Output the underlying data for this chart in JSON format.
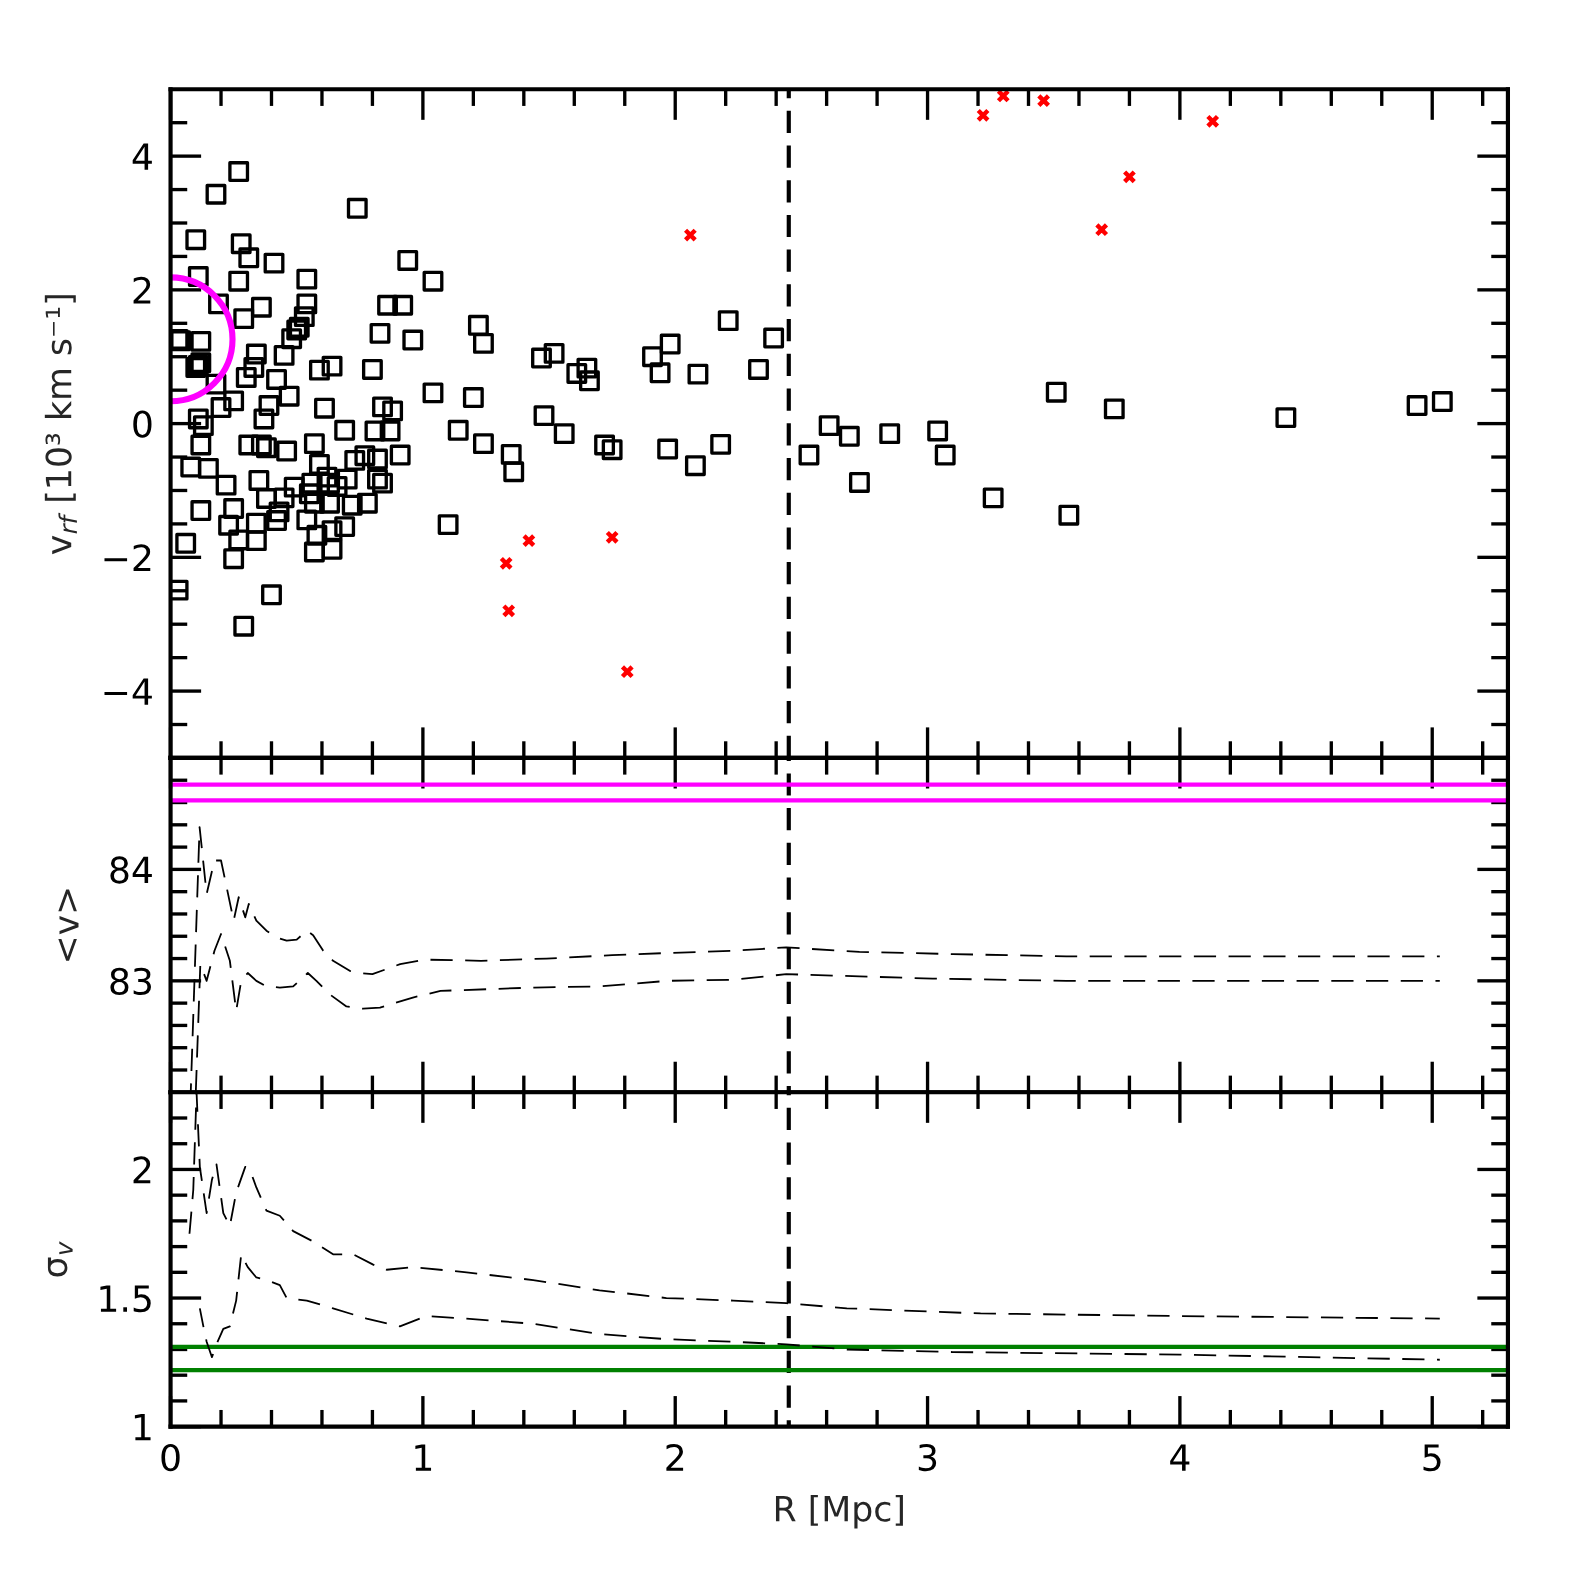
{
  "chart_data": [
    {
      "type": "scatter",
      "ylabel": "v$_{rf}$ [10³ km s⁻¹]",
      "xlim": [
        0,
        5.3
      ],
      "ylim": [
        -5,
        5
      ],
      "tick_labels": "y",
      "xticks": [
        0,
        {
          "value": 0.2,
          "label": null
        },
        {
          "value": 0.4,
          "label": null
        },
        {
          "value": 0.6,
          "label": null
        },
        {
          "value": 0.8,
          "label": null
        },
        1,
        {
          "value": 1.2,
          "label": null
        },
        {
          "value": 1.4,
          "label": null
        },
        {
          "value": 1.6,
          "label": null
        },
        {
          "value": 1.8,
          "label": null
        },
        2,
        {
          "value": 2.2,
          "label": null
        },
        {
          "value": 2.4,
          "label": null
        },
        {
          "value": 2.6,
          "label": null
        },
        {
          "value": 2.8,
          "label": null
        },
        3,
        {
          "value": 3.2,
          "label": null
        },
        {
          "value": 3.4,
          "label": null
        },
        {
          "value": 3.6,
          "label": null
        },
        {
          "value": 3.8,
          "label": null
        },
        4,
        {
          "value": 4.2,
          "label": null
        },
        {
          "value": 4.4,
          "label": null
        },
        {
          "value": 4.6,
          "label": null
        },
        {
          "value": 4.8,
          "label": null
        },
        5,
        {
          "value": 5.2,
          "label": null
        }
      ],
      "yticks": [
        {
          "value": -4.5,
          "label": null
        },
        {
          "value": -4,
          "label": "−4"
        },
        {
          "value": -3.5,
          "label": null
        },
        {
          "value": -3,
          "label": null
        },
        {
          "value": -2.5,
          "label": null
        },
        {
          "value": -2,
          "label": "−2"
        },
        {
          "value": -1.5,
          "label": null
        },
        {
          "value": -1,
          "label": null
        },
        {
          "value": -0.5,
          "label": null
        },
        0,
        {
          "value": 0.5,
          "label": null
        },
        {
          "value": 1,
          "label": null
        },
        {
          "value": 1.5,
          "label": null
        },
        2,
        {
          "value": 2.5,
          "label": null
        },
        {
          "value": 3,
          "label": null
        },
        {
          "value": 3.5,
          "label": null
        },
        4,
        {
          "value": 4.5,
          "label": null
        }
      ],
      "series": [
        {
          "color": "#000000",
          "marker": "square",
          "x": [
            0.27,
            0.18,
            0.74,
            0.1,
            0.28,
            0.31,
            0.41,
            0.94,
            0.11,
            0.27,
            0.54,
            1.04,
            0.19,
            0.36,
            0.86,
            0.92,
            0.54,
            0.29,
            0.53,
            0.51,
            0.83,
            0.96,
            1.22,
            1.24,
            0.03,
            0.12,
            0.48,
            0.5,
            0.34,
            0.45,
            0.11,
            0.12,
            0.33,
            0.59,
            0.64,
            0.8,
            0.3,
            0.42,
            0.18,
            0.47,
            1.04,
            1.2,
            0.25,
            0.2,
            0.39,
            0.61,
            0.84,
            0.88,
            0.11,
            0.37,
            0.13,
            0.69,
            0.81,
            0.87,
            1.14,
            1.24,
            0.12,
            0.31,
            0.36,
            0.38,
            0.46,
            0.57,
            0.77,
            0.73,
            0.91,
            0.08,
            0.15,
            0.59,
            0.22,
            0.35,
            0.49,
            0.56,
            0.62,
            0.7,
            0.82,
            0.84,
            0.63,
            1.35,
            1.36,
            0.38,
            0.45,
            0.55,
            0.66,
            0.12,
            0.25,
            0.43,
            0.57,
            0.63,
            0.72,
            0.78,
            0.54,
            0.42,
            0.34,
            0.23,
            0.69,
            0.58,
            0.64,
            0.27,
            0.34,
            0.06,
            0.57,
            0.64,
            0.25,
            1.1,
            0.03,
            0.4,
            0.29,
            0.1,
            0.82,
            0.04,
            1.47,
            1.52,
            1.61,
            1.65,
            1.66,
            1.91,
            1.98,
            1.94,
            2.09,
            2.21,
            2.33,
            2.39,
            1.48,
            1.56,
            1.72,
            1.75,
            1.97,
            2.08,
            2.18,
            2.53,
            2.61,
            2.69,
            2.85,
            3.04,
            3.07,
            2.73,
            3.26,
            3.51,
            3.74,
            3.56,
            4.42,
            4.94,
            5.04
          ],
          "values": [
            3.77,
            3.43,
            3.22,
            2.75,
            2.69,
            2.48,
            2.4,
            2.44,
            2.2,
            2.13,
            2.16,
            2.13,
            1.79,
            1.74,
            1.77,
            1.77,
            1.79,
            1.57,
            1.6,
            1.44,
            1.35,
            1.25,
            1.47,
            1.2,
            1.26,
            1.23,
            1.27,
            1.4,
            1.04,
            1.02,
            0.87,
            0.91,
            0.84,
            0.8,
            0.86,
            0.81,
            0.69,
            0.66,
            0.59,
            0.41,
            0.46,
            0.39,
            0.34,
            0.24,
            0.27,
            0.23,
            0.25,
            0.19,
            0.07,
            0.07,
            -0.03,
            -0.1,
            -0.11,
            -0.11,
            -0.1,
            -0.3,
            -0.32,
            -0.32,
            -0.32,
            -0.36,
            -0.41,
            -0.3,
            -0.48,
            -0.55,
            -0.47,
            -0.65,
            -0.67,
            -0.61,
            -0.92,
            -0.85,
            -0.95,
            -0.89,
            -0.8,
            -0.83,
            -0.83,
            -0.89,
            -0.89,
            -0.46,
            -0.72,
            -1.12,
            -1.11,
            -1.05,
            -0.94,
            -1.3,
            -1.27,
            -1.32,
            -1.19,
            -1.19,
            -1.22,
            -1.19,
            -1.44,
            -1.45,
            -1.49,
            -1.52,
            -1.54,
            -1.67,
            -1.6,
            -1.74,
            -1.75,
            -1.79,
            -1.92,
            -1.88,
            -2.02,
            -1.51,
            -2.49,
            -2.56,
            -3.03,
            0.84,
            -0.53,
            1.24,
            0.98,
            1.05,
            0.75,
            0.83,
            0.64,
            1.0,
            1.19,
            0.76,
            0.74,
            1.54,
            0.81,
            1.28,
            0.12,
            -0.15,
            -0.32,
            -0.39,
            -0.38,
            -0.63,
            -0.31,
            -0.47,
            -0.03,
            -0.19,
            -0.15,
            -0.11,
            -0.47,
            -0.88,
            -1.11,
            0.47,
            0.22,
            -1.37,
            0.09,
            0.27,
            0.33
          ]
        },
        {
          "color": "#ff0000",
          "marker": "cross",
          "x": [
            1.33,
            1.34,
            1.42,
            1.75,
            1.81,
            2.06,
            3.22,
            3.3,
            3.46,
            3.69,
            3.8,
            4.13
          ],
          "values": [
            -2.09,
            -2.8,
            -1.75,
            -1.7,
            -3.71,
            2.82,
            4.61,
            4.9,
            4.83,
            2.9,
            3.69,
            4.52
          ]
        },
        {
          "type": "bubble",
          "color": "#ff00ff",
          "marker": "circle",
          "x": [
            0
          ],
          "values": [
            1.26
          ],
          "sizes": [
            1
          ]
        }
      ],
      "ref_lines": [
        {
          "axis": "x",
          "value": 2.45,
          "color": "#000000",
          "line_style": "dashed"
        }
      ]
    },
    {
      "type": "line",
      "ylabel": "<v>",
      "xlim": [
        0,
        5.3
      ],
      "ylim": [
        82,
        85
      ],
      "tick_labels": "y",
      "xticks": [
        0,
        {
          "value": 0.2,
          "label": null
        },
        {
          "value": 0.4,
          "label": null
        },
        {
          "value": 0.6,
          "label": null
        },
        {
          "value": 0.8,
          "label": null
        },
        1,
        {
          "value": 1.2,
          "label": null
        },
        {
          "value": 1.4,
          "label": null
        },
        {
          "value": 1.6,
          "label": null
        },
        {
          "value": 1.8,
          "label": null
        },
        2,
        {
          "value": 2.2,
          "label": null
        },
        {
          "value": 2.4,
          "label": null
        },
        {
          "value": 2.6,
          "label": null
        },
        {
          "value": 2.8,
          "label": null
        },
        3,
        {
          "value": 3.2,
          "label": null
        },
        {
          "value": 3.4,
          "label": null
        },
        {
          "value": 3.6,
          "label": null
        },
        {
          "value": 3.8,
          "label": null
        },
        4,
        {
          "value": 4.2,
          "label": null
        },
        {
          "value": 4.4,
          "label": null
        },
        {
          "value": 4.6,
          "label": null
        },
        {
          "value": 4.8,
          "label": null
        },
        5,
        {
          "value": 5.2,
          "label": null
        }
      ],
      "yticks": [
        {
          "value": 82.2,
          "label": null
        },
        {
          "value": 82.4,
          "label": null
        },
        {
          "value": 82.6,
          "label": null
        },
        {
          "value": 82.8,
          "label": null
        },
        83,
        {
          "value": 83.2,
          "label": null
        },
        {
          "value": 83.4,
          "label": null
        },
        {
          "value": 83.6,
          "label": null
        },
        {
          "value": 83.8,
          "label": null
        },
        84,
        {
          "value": 84.2,
          "label": null
        },
        {
          "value": 84.4,
          "label": null
        },
        {
          "value": 84.6,
          "label": null
        },
        {
          "value": 84.8,
          "label": null
        }
      ],
      "series": [
        {
          "color": "#000000",
          "line_style": "dashed",
          "x": [
            0.08,
            0.115,
            0.143,
            0.174,
            0.2,
            0.25,
            0.27,
            0.296,
            0.31,
            0.34,
            0.38,
            0.42,
            0.46,
            0.5,
            0.54,
            0.565,
            0.605,
            0.644,
            0.71,
            0.75,
            0.8,
            0.91,
            1.01,
            1.23,
            1.49,
            1.75,
            1.97,
            2.23,
            2.44,
            2.73,
            3.1,
            3.55,
            4.2,
            5.03
          ],
          "values": [
            82.0,
            84.38,
            83.78,
            84.08,
            84.08,
            83.54,
            83.75,
            83.57,
            83.69,
            83.54,
            83.45,
            83.39,
            83.36,
            83.37,
            83.45,
            83.41,
            83.27,
            83.18,
            83.09,
            83.07,
            83.06,
            83.15,
            83.19,
            83.18,
            83.2,
            83.23,
            83.25,
            83.27,
            83.3,
            83.26,
            83.24,
            83.22,
            83.22,
            83.22
          ]
        },
        {
          "color": "#000000",
          "line_style": "dashed",
          "x": [
            0.1,
            0.118,
            0.143,
            0.174,
            0.2,
            0.235,
            0.26,
            0.28,
            0.306,
            0.34,
            0.38,
            0.433,
            0.486,
            0.544,
            0.578,
            0.63,
            0.697,
            0.763,
            0.83,
            0.96,
            1.07,
            1.44,
            1.7,
            1.97,
            2.23,
            2.44,
            2.73,
            3.02,
            3.55,
            5.03
          ],
          "values": [
            82.0,
            83.15,
            83.0,
            83.27,
            83.42,
            83.18,
            82.73,
            83.0,
            83.07,
            83.0,
            82.95,
            82.94,
            82.95,
            83.07,
            83.0,
            82.88,
            82.77,
            82.75,
            82.76,
            82.85,
            82.91,
            82.94,
            82.95,
            83.0,
            83.01,
            83.06,
            83.04,
            83.02,
            83.0,
            83.0
          ]
        }
      ],
      "ref_lines": [
        {
          "axis": "x",
          "value": 2.45,
          "color": "#000000",
          "line_style": "dashed"
        },
        {
          "axis": "y",
          "value": 84.76,
          "color": "#ff00ff"
        },
        {
          "axis": "y",
          "value": 84.62,
          "color": "#ff00ff"
        }
      ]
    },
    {
      "type": "line",
      "xlabel": "R [Mpc]",
      "ylabel": "σ$_{v}$",
      "xlim": [
        0,
        5.3
      ],
      "ylim": [
        1,
        2.3
      ],
      "xticks": [
        0,
        {
          "value": 0.2,
          "label": null
        },
        {
          "value": 0.4,
          "label": null
        },
        {
          "value": 0.6,
          "label": null
        },
        {
          "value": 0.8,
          "label": null
        },
        1,
        {
          "value": 1.2,
          "label": null
        },
        {
          "value": 1.4,
          "label": null
        },
        {
          "value": 1.6,
          "label": null
        },
        {
          "value": 1.8,
          "label": null
        },
        2,
        {
          "value": 2.2,
          "label": null
        },
        {
          "value": 2.4,
          "label": null
        },
        {
          "value": 2.6,
          "label": null
        },
        {
          "value": 2.8,
          "label": null
        },
        3,
        {
          "value": 3.2,
          "label": null
        },
        {
          "value": 3.4,
          "label": null
        },
        {
          "value": 3.6,
          "label": null
        },
        {
          "value": 3.8,
          "label": null
        },
        4,
        {
          "value": 4.2,
          "label": null
        },
        {
          "value": 4.4,
          "label": null
        },
        {
          "value": 4.6,
          "label": null
        },
        {
          "value": 4.8,
          "label": null
        },
        5,
        {
          "value": 5.2,
          "label": null
        }
      ],
      "yticks": [
        1,
        {
          "value": 1.1,
          "label": null
        },
        {
          "value": 1.2,
          "label": null
        },
        {
          "value": 1.3,
          "label": null
        },
        {
          "value": 1.4,
          "label": null
        },
        1.5,
        {
          "value": 1.6,
          "label": null
        },
        {
          "value": 1.7,
          "label": null
        },
        {
          "value": 1.8,
          "label": null
        },
        {
          "value": 1.9,
          "label": null
        },
        2,
        {
          "value": 2.1,
          "label": null
        },
        {
          "value": 2.2,
          "label": null
        }
      ],
      "series": [
        {
          "color": "#000000",
          "line_style": "dashed",
          "x": [
            0.075,
            0.09,
            0.103,
            0.116,
            0.143,
            0.164,
            0.182,
            0.209,
            0.235,
            0.26,
            0.296,
            0.314,
            0.34,
            0.38,
            0.433,
            0.486,
            0.565,
            0.644,
            0.724,
            0.803,
            0.856,
            0.961,
            1.173,
            1.437,
            1.7,
            1.965,
            2.23,
            2.44,
            2.68,
            3.21,
            4.0,
            5.03
          ],
          "values": [
            1.75,
            1.92,
            2.3,
            2.01,
            1.83,
            1.96,
            2.02,
            1.83,
            1.78,
            1.91,
            2.01,
            2.0,
            1.93,
            1.84,
            1.82,
            1.76,
            1.72,
            1.67,
            1.67,
            1.63,
            1.61,
            1.62,
            1.6,
            1.57,
            1.53,
            1.5,
            1.49,
            1.48,
            1.46,
            1.44,
            1.43,
            1.42
          ]
        },
        {
          "color": "#000000",
          "line_style": "dashed",
          "x": [
            0.116,
            0.13,
            0.143,
            0.164,
            0.182,
            0.209,
            0.235,
            0.26,
            0.28,
            0.306,
            0.34,
            0.38,
            0.433,
            0.46,
            0.54,
            0.644,
            0.777,
            0.909,
            1.014,
            1.173,
            1.437,
            1.7,
            1.965,
            2.23,
            2.44,
            2.68,
            3.1,
            4.0,
            5.03
          ],
          "values": [
            1.46,
            1.39,
            1.33,
            1.27,
            1.32,
            1.38,
            1.39,
            1.49,
            1.67,
            1.62,
            1.58,
            1.57,
            1.55,
            1.5,
            1.49,
            1.46,
            1.42,
            1.39,
            1.43,
            1.42,
            1.4,
            1.36,
            1.34,
            1.33,
            1.32,
            1.3,
            1.29,
            1.28,
            1.26
          ]
        }
      ],
      "ref_lines": [
        {
          "axis": "x",
          "value": 2.45,
          "color": "#000000",
          "line_style": "dashed"
        },
        {
          "axis": "y",
          "value": 1.31,
          "color": "#008000"
        },
        {
          "axis": "y",
          "value": 1.22,
          "color": "#008000"
        }
      ]
    }
  ]
}
